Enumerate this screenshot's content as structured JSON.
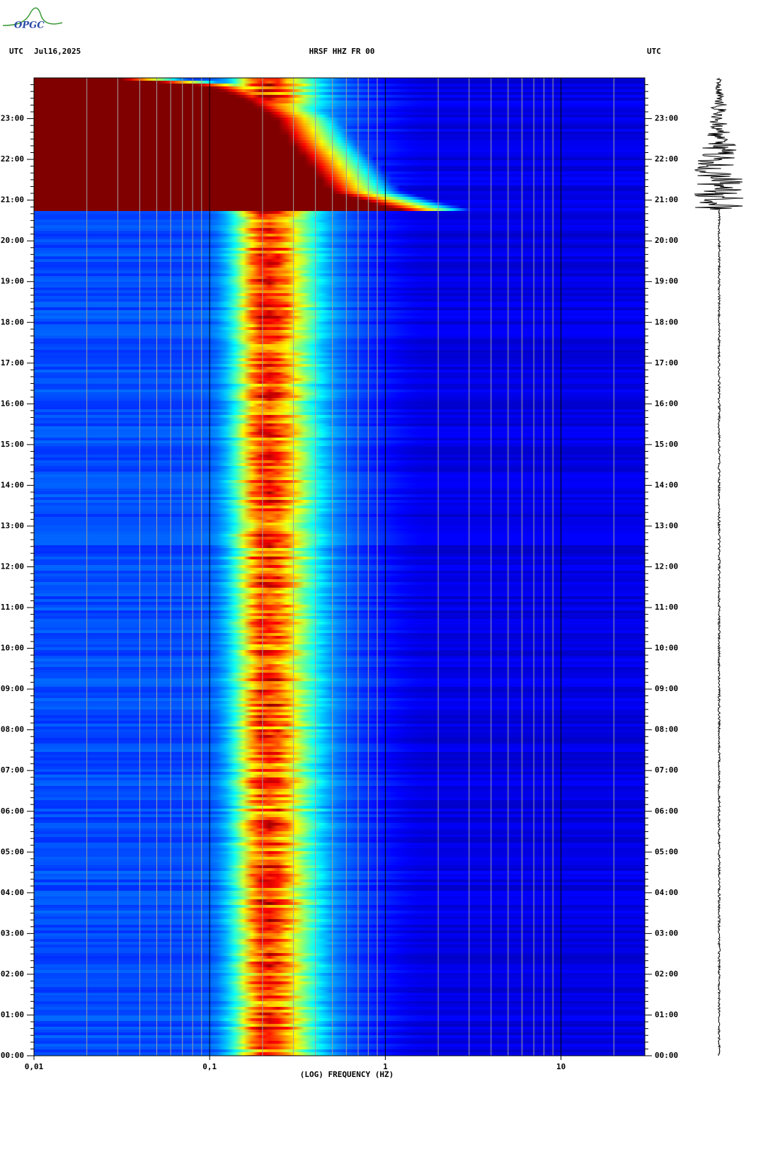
{
  "header": {
    "left": "UTC",
    "date": "Jul16,2025",
    "right": "UTC",
    "logo": "OPGC"
  },
  "chart_data": {
    "type": "spectrogram",
    "title": "HRSF HHZ FR 00",
    "x_label": "(LOG) FREQUENCY (HZ)",
    "xscale": "log",
    "xlim": [
      0.01,
      30
    ],
    "xticks": [
      {
        "value": 0.01,
        "label": "0,01"
      },
      {
        "value": 0.1,
        "label": "0,1"
      },
      1,
      10
    ],
    "ylim": [
      0,
      24
    ],
    "yticks": [
      {
        "value": 0,
        "label": "00:00"
      },
      {
        "value": 1,
        "label": "01:00"
      },
      {
        "value": 2,
        "label": "02:00"
      },
      {
        "value": 3,
        "label": "03:00"
      },
      {
        "value": 4,
        "label": "04:00"
      },
      {
        "value": 5,
        "label": "05:00"
      },
      {
        "value": 6,
        "label": "06:00"
      },
      {
        "value": 7,
        "label": "07:00"
      },
      {
        "value": 8,
        "label": "08:00"
      },
      {
        "value": 9,
        "label": "09:00"
      },
      {
        "value": 10,
        "label": "10:00"
      },
      {
        "value": 11,
        "label": "11:00"
      },
      {
        "value": 12,
        "label": "12:00"
      },
      {
        "value": 13,
        "label": "13:00"
      },
      {
        "value": 14,
        "label": "14:00"
      },
      {
        "value": 15,
        "label": "15:00"
      },
      {
        "value": 16,
        "label": "16:00"
      },
      {
        "value": 17,
        "label": "17:00"
      },
      {
        "value": 18,
        "label": "18:00"
      },
      {
        "value": 19,
        "label": "19:00"
      },
      {
        "value": 20,
        "label": "20:00"
      },
      {
        "value": 21,
        "label": "21:00"
      },
      {
        "value": 22,
        "label": "22:00"
      },
      {
        "value": 23,
        "label": "23:00"
      }
    ]
  }
}
